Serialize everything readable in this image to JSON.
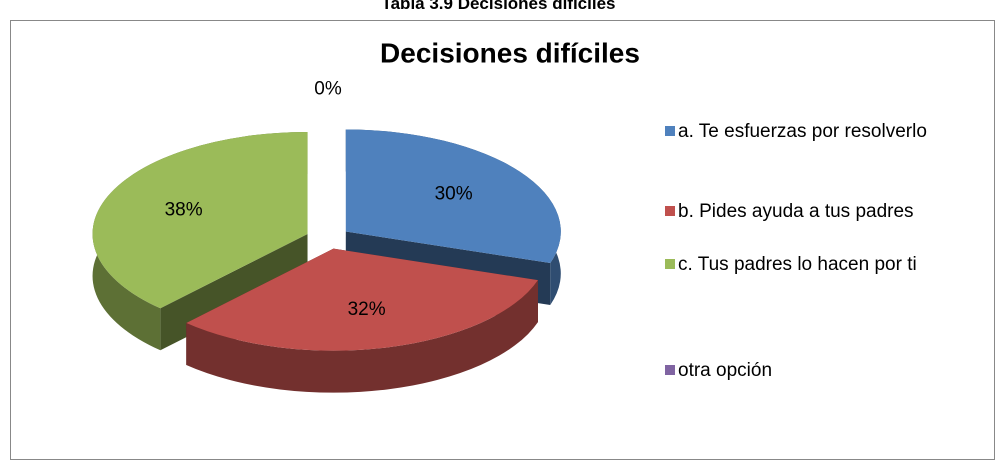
{
  "caption": "Tabla 3.9 Decisiones difíciles",
  "chart_data": {
    "type": "pie",
    "title": "Decisiones difíciles",
    "categories": [
      "a. Te esfuerzas por resolverlo",
      "b. Pides ayuda a tus padres",
      "c. Tus padres lo hacen por ti",
      "otra opción"
    ],
    "values": [
      30,
      32,
      38,
      0
    ],
    "value_labels": [
      "30%",
      "32%",
      "38%",
      "0%"
    ],
    "colors": [
      "#4f81bd",
      "#c0504d",
      "#9bbb59",
      "#8064a2"
    ],
    "legend": "right"
  }
}
